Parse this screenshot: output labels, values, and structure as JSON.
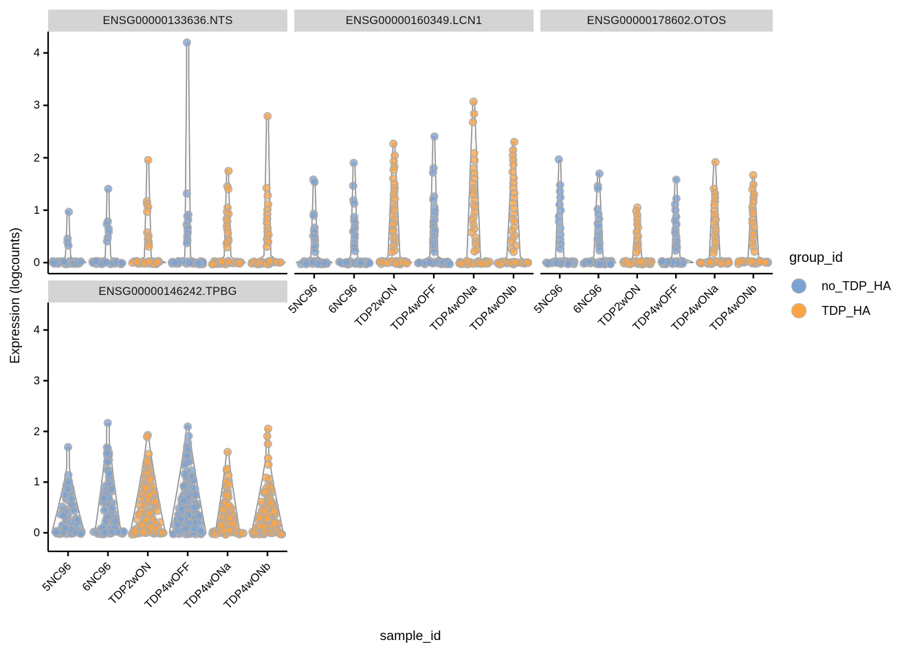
{
  "legend": {
    "title": "group_id",
    "items": [
      {
        "label": "no_TDP_HA",
        "color": "#7CA2D4"
      },
      {
        "label": "TDP_HA",
        "color": "#FCA445"
      }
    ]
  },
  "style_colors": {
    "point_stroke": "#ABABAB",
    "violin_stroke": "#8C8C8C",
    "violin_fill": "#F4F4F4",
    "strip_bg": "#D4D4D4",
    "axis": "#000000"
  },
  "chart_data": {
    "type": "violin",
    "xlabel": "sample_id",
    "ylabel": "Expression (logcounts)",
    "legend_title": "group_id",
    "x_categories": [
      "5NC96",
      "6NC96",
      "TDP2wON",
      "TDP4wOFF",
      "TDP4wONa",
      "TDP4wONb"
    ],
    "y_ticks": [
      "0",
      "1",
      "2",
      "3",
      "4"
    ],
    "ylim": [
      0,
      4.3
    ],
    "grid": false,
    "legend_position": "right",
    "groups": {
      "5NC96": "no_TDP_HA",
      "6NC96": "no_TDP_HA",
      "TDP2wON": "TDP_HA",
      "TDP4wOFF": "no_TDP_HA",
      "TDP4wONa": "TDP_HA",
      "TDP4wONb": "TDP_HA"
    },
    "facets": [
      {
        "title": "ENSG00000133636.NTS",
        "violins": [
          {
            "sample": "5NC96",
            "group": "no_TDP_HA",
            "shape": "spike",
            "max": 0.97,
            "taper": 3,
            "w": 0.9,
            "base_n": 26,
            "tail": [
              0.97,
              0.46,
              0.4,
              0.33
            ]
          },
          {
            "sample": "6NC96",
            "group": "no_TDP_HA",
            "shape": "spike",
            "max": 1.39,
            "taper": 3,
            "w": 0.9,
            "base_n": 28,
            "tail": [
              1.39,
              0.78,
              0.72,
              0.66,
              0.6,
              0.47,
              0.42
            ]
          },
          {
            "sample": "TDP2wON",
            "group": "TDP_HA",
            "shape": "spike",
            "max": 1.95,
            "taper": 4,
            "w": 0.9,
            "base_n": 30,
            "tail": [
              1.95,
              1.18,
              1.12,
              1.05,
              0.97,
              0.56,
              0.5,
              0.45,
              0.4,
              0.34,
              0.3
            ]
          },
          {
            "sample": "TDP4wOFF",
            "group": "no_TDP_HA",
            "shape": "spike",
            "max": 4.18,
            "taper": 3,
            "w": 0.9,
            "base_n": 30,
            "tail": [
              4.18,
              1.3,
              0.93,
              0.87,
              0.8,
              0.74,
              0.68,
              0.62,
              0.56,
              0.5,
              0.44,
              0.38
            ]
          },
          {
            "sample": "TDP4wONa",
            "group": "TDP_HA",
            "shape": "spike",
            "max": 1.76,
            "taper": 4,
            "w": 0.9,
            "base_n": 30,
            "tail": [
              1.76,
              1.47,
              1.4,
              1.05,
              0.98,
              0.92,
              0.85,
              0.78,
              0.7,
              0.63,
              0.55,
              0.48,
              0.42,
              0.36,
              0.3
            ]
          },
          {
            "sample": "TDP4wONb",
            "group": "TDP_HA",
            "shape": "spike",
            "max": 2.8,
            "taper": 4,
            "w": 0.9,
            "base_n": 30,
            "tail": [
              2.8,
              1.42,
              1.3,
              1.12,
              1.0,
              0.92,
              0.84,
              0.76,
              0.68,
              0.6,
              0.52,
              0.45,
              0.38,
              0.32
            ]
          }
        ]
      },
      {
        "title": "ENSG00000160349.LCN1",
        "violins": [
          {
            "sample": "5NC96",
            "group": "no_TDP_HA",
            "shape": "spike",
            "max": 1.57,
            "taper": 4,
            "w": 0.9,
            "base_n": 26,
            "tail": [
              1.57,
              1.52,
              0.95,
              0.9,
              0.68,
              0.62,
              0.57,
              0.52,
              0.47,
              0.43,
              0.38,
              0.34,
              0.3,
              0.26,
              0.22
            ]
          },
          {
            "sample": "6NC96",
            "group": "no_TDP_HA",
            "shape": "spike",
            "max": 1.9,
            "taper": 4,
            "w": 0.9,
            "base_n": 26,
            "tail": [
              1.9,
              1.45,
              1.18,
              1.12,
              0.88,
              0.82,
              0.76,
              0.7,
              0.64,
              0.58,
              0.52,
              0.46,
              0.4,
              0.34,
              0.28,
              0.23
            ]
          },
          {
            "sample": "TDP2wON",
            "group": "TDP_HA",
            "shape": "spike",
            "max": 2.27,
            "taper": 8,
            "w": 0.9,
            "base_n": 30,
            "tail": [
              2.27,
              2.05,
              1.95,
              1.85,
              1.75,
              1.6,
              1.5,
              1.42,
              1.35,
              1.28,
              1.2,
              1.12,
              1.05,
              0.98,
              0.9,
              0.83,
              0.76,
              0.7,
              0.64,
              0.58,
              0.52,
              0.46,
              0.4,
              0.35,
              0.3,
              0.25,
              0.2
            ]
          },
          {
            "sample": "TDP4wOFF",
            "group": "no_TDP_HA",
            "shape": "spike",
            "max": 2.4,
            "taper": 5,
            "w": 0.9,
            "base_n": 28,
            "tail": [
              2.4,
              1.8,
              1.72,
              1.28,
              1.2,
              1.05,
              0.98,
              0.9,
              0.83,
              0.76,
              0.7,
              0.64,
              0.58,
              0.52,
              0.46,
              0.4,
              0.34,
              0.28,
              0.22
            ]
          },
          {
            "sample": "TDP4wONa",
            "group": "TDP_HA",
            "shape": "spike",
            "max": 3.07,
            "taper": 9,
            "w": 0.9,
            "base_n": 30,
            "tail": [
              3.07,
              2.85,
              2.7,
              2.1,
              1.95,
              1.8,
              1.7,
              1.6,
              1.52,
              1.44,
              1.36,
              1.28,
              1.2,
              1.12,
              1.04,
              0.96,
              0.88,
              0.8,
              0.72,
              0.64,
              0.56,
              0.48,
              0.4,
              0.33,
              0.26,
              0.2
            ]
          },
          {
            "sample": "TDP4wONb",
            "group": "TDP_HA",
            "shape": "spike",
            "max": 2.3,
            "taper": 9,
            "w": 0.9,
            "base_n": 28,
            "tail": [
              2.3,
              2.15,
              2.05,
              1.95,
              1.85,
              1.75,
              1.62,
              1.52,
              1.42,
              1.32,
              1.22,
              1.12,
              1.02,
              0.93,
              0.85,
              0.77,
              0.69,
              0.61,
              0.53,
              0.46,
              0.39,
              0.32,
              0.26,
              0.2
            ]
          }
        ]
      },
      {
        "title": "ENSG00000178602.OTOS",
        "violins": [
          {
            "sample": "5NC96",
            "group": "no_TDP_HA",
            "shape": "spike",
            "max": 1.95,
            "taper": 5,
            "w": 0.9,
            "base_n": 26,
            "tail": [
              1.95,
              1.5,
              1.36,
              1.25,
              1.1,
              1.0,
              0.9,
              0.8,
              0.66,
              0.55,
              0.45,
              0.36,
              0.28
            ]
          },
          {
            "sample": "6NC96",
            "group": "no_TDP_HA",
            "shape": "spike",
            "max": 1.7,
            "taper": 6,
            "w": 0.9,
            "base_n": 28,
            "tail": [
              1.7,
              1.45,
              1.4,
              1.0,
              0.92,
              0.84,
              0.76,
              0.68,
              0.6,
              0.52,
              0.45,
              0.38,
              0.31,
              0.25
            ]
          },
          {
            "sample": "TDP2wON",
            "group": "TDP_HA",
            "shape": "spike",
            "max": 1.05,
            "taper": 6,
            "w": 0.9,
            "base_n": 30,
            "tail": [
              1.05,
              0.98,
              0.9,
              0.82,
              0.74,
              0.66,
              0.58,
              0.5,
              0.43,
              0.36,
              0.3,
              0.24,
              0.18
            ]
          },
          {
            "sample": "TDP4wOFF",
            "group": "no_TDP_HA",
            "shape": "spike",
            "max": 1.6,
            "taper": 5,
            "w": 0.9,
            "base_n": 30,
            "tail": [
              1.6,
              1.22,
              1.12,
              1.02,
              0.88,
              0.8,
              0.72,
              0.64,
              0.56,
              0.48,
              0.41,
              0.34,
              0.27,
              0.21
            ]
          },
          {
            "sample": "TDP4wONa",
            "group": "TDP_HA",
            "shape": "spike",
            "max": 1.93,
            "taper": 7,
            "w": 0.9,
            "base_n": 30,
            "tail": [
              1.93,
              1.4,
              1.32,
              1.24,
              1.16,
              1.08,
              1.0,
              0.92,
              0.84,
              0.76,
              0.68,
              0.6,
              0.52,
              0.45,
              0.38,
              0.31,
              0.25,
              0.19
            ]
          },
          {
            "sample": "TDP4wONb",
            "group": "TDP_HA",
            "shape": "spike",
            "max": 1.65,
            "taper": 7,
            "w": 0.9,
            "base_n": 30,
            "tail": [
              1.65,
              1.48,
              1.4,
              1.32,
              1.24,
              1.16,
              1.08,
              1.0,
              0.92,
              0.84,
              0.76,
              0.68,
              0.6,
              0.52,
              0.44,
              0.37,
              0.3,
              0.23
            ]
          }
        ]
      },
      {
        "title": "ENSG00000146242.TPBG",
        "violins": [
          {
            "sample": "5NC96",
            "group": "no_TDP_HA",
            "shape": "cone",
            "max": 1.68,
            "body_max": 1.3,
            "body_n": 75,
            "w": 0.82,
            "base_n": 24,
            "tail": [
              1.68
            ]
          },
          {
            "sample": "6NC96",
            "group": "no_TDP_HA",
            "shape": "cone",
            "max": 2.15,
            "body_max": 1.85,
            "body_n": 80,
            "w": 0.66,
            "base_n": 24,
            "tail": [
              2.15
            ]
          },
          {
            "sample": "TDP2wON",
            "group": "TDP_HA",
            "shape": "cone",
            "max": 1.93,
            "body_max": 1.82,
            "body_n": 110,
            "w": 0.88,
            "base_n": 24,
            "tail": [
              1.93,
              1.88
            ]
          },
          {
            "sample": "TDP4wOFF",
            "group": "no_TDP_HA",
            "shape": "cone",
            "max": 2.1,
            "body_max": 2.05,
            "body_n": 130,
            "w": 0.92,
            "base_n": 24,
            "tail": [
              2.1
            ]
          },
          {
            "sample": "TDP4wONa",
            "group": "TDP_HA",
            "shape": "cone",
            "max": 1.6,
            "body_max": 1.52,
            "body_n": 70,
            "w": 0.62,
            "base_n": 24,
            "tail": [
              1.6
            ]
          },
          {
            "sample": "TDP4wONb",
            "group": "TDP_HA",
            "shape": "cone",
            "max": 2.05,
            "body_max": 1.55,
            "body_n": 85,
            "w": 0.8,
            "base_n": 24,
            "tail": [
              2.05,
              1.9,
              1.75
            ]
          }
        ]
      }
    ]
  }
}
